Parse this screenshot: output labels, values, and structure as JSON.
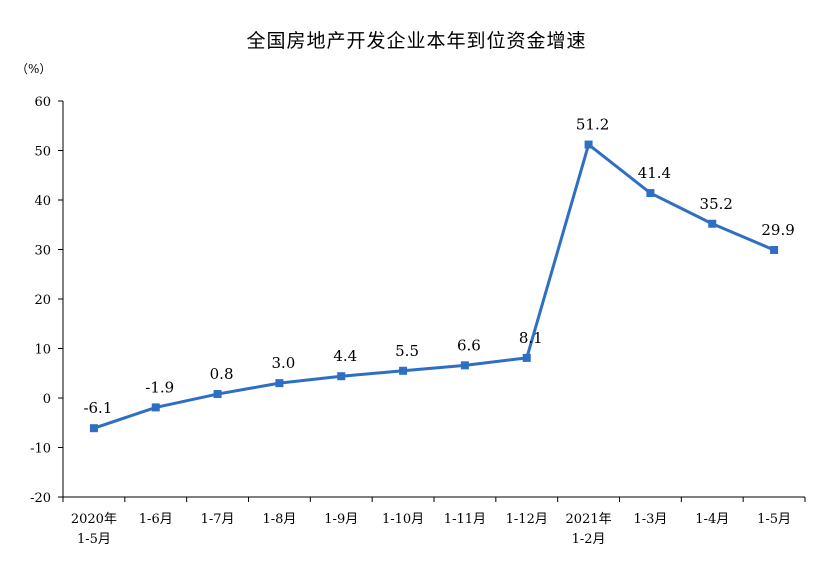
{
  "chart_data": {
    "type": "line",
    "title": "全国房地产开发企业本年到位资金增速",
    "ylabel": "（%）",
    "xlabel": "",
    "ylim": [
      -20,
      60
    ],
    "yticks": [
      -20,
      -10,
      0,
      10,
      20,
      30,
      40,
      50,
      60
    ],
    "ytick_labels": [
      "-20",
      "-10",
      "0",
      "10",
      "20",
      "30",
      "40",
      "50",
      "60"
    ],
    "categories": [
      "2020年1-5月",
      "1-6月",
      "1-7月",
      "1-8月",
      "1-9月",
      "1-10月",
      "1-11月",
      "1-12月",
      "2021年1-2月",
      "1-3月",
      "1-4月",
      "1-5月"
    ],
    "category_lines": [
      [
        "2020年",
        "1-5月"
      ],
      [
        "1-6月"
      ],
      [
        "1-7月"
      ],
      [
        "1-8月"
      ],
      [
        "1-9月"
      ],
      [
        "1-10月"
      ],
      [
        "1-11月"
      ],
      [
        "1-12月"
      ],
      [
        "2021年",
        "1-2月"
      ],
      [
        "1-3月"
      ],
      [
        "1-4月"
      ],
      [
        "1-5月"
      ]
    ],
    "series": [
      {
        "values": [
          -6.1,
          -1.9,
          0.8,
          3.0,
          4.4,
          5.5,
          6.6,
          8.1,
          51.2,
          41.4,
          35.2,
          29.9
        ],
        "labels": [
          "-6.1",
          "-1.9",
          "0.8",
          "3.0",
          "4.4",
          "5.5",
          "6.6",
          "8.1",
          "51.2",
          "41.4",
          "35.2",
          "29.9"
        ],
        "color": "#2e6fc4"
      }
    ],
    "grid": false,
    "legend": "none"
  }
}
